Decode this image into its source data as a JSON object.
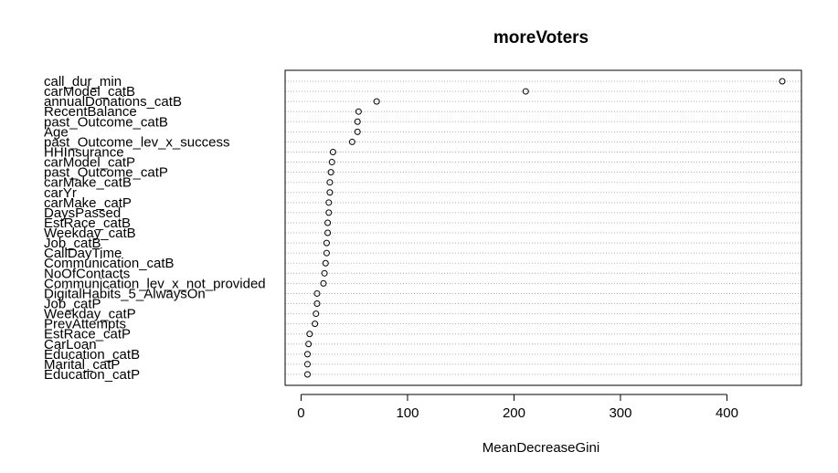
{
  "chart_data": {
    "type": "scatter",
    "title": "moreVoters",
    "xlabel": "MeanDecreaseGini",
    "ylabel": "",
    "xlim": [
      -15,
      470
    ],
    "xticks": [
      0,
      100,
      200,
      300,
      400
    ],
    "grid": "dotted-horizontal",
    "categories": [
      "call_dur_min",
      "carModel_catB",
      "annualDonations_catB",
      "RecentBalance",
      "past_Outcome_catB",
      "Age",
      "past_Outcome_lev_x_success",
      "HHInsurance",
      "carModel_catP",
      "past_Outcome_catP",
      "carMake_catB",
      "carYr",
      "carMake_catP",
      "DaysPassed",
      "EstRace_catB",
      "Weekday_catB",
      "Job_catB",
      "CallDayTime",
      "Communication_catB",
      "NoOfContacts",
      "Communication_lev_x_not_provided",
      "DigitalHabits_5_AlwaysOn",
      "Job_catP",
      "Weekday_catP",
      "PrevAttempts",
      "EstRace_catP",
      "CarLoan",
      "Education_catB",
      "Marital_catP",
      "Education_catP"
    ],
    "values": [
      452,
      211,
      71,
      54,
      53,
      53,
      48,
      30,
      29,
      28,
      27,
      27,
      26,
      26,
      25,
      25,
      24,
      24,
      23,
      22,
      21,
      15,
      15,
      14,
      13,
      8,
      7,
      6,
      6,
      6
    ]
  }
}
